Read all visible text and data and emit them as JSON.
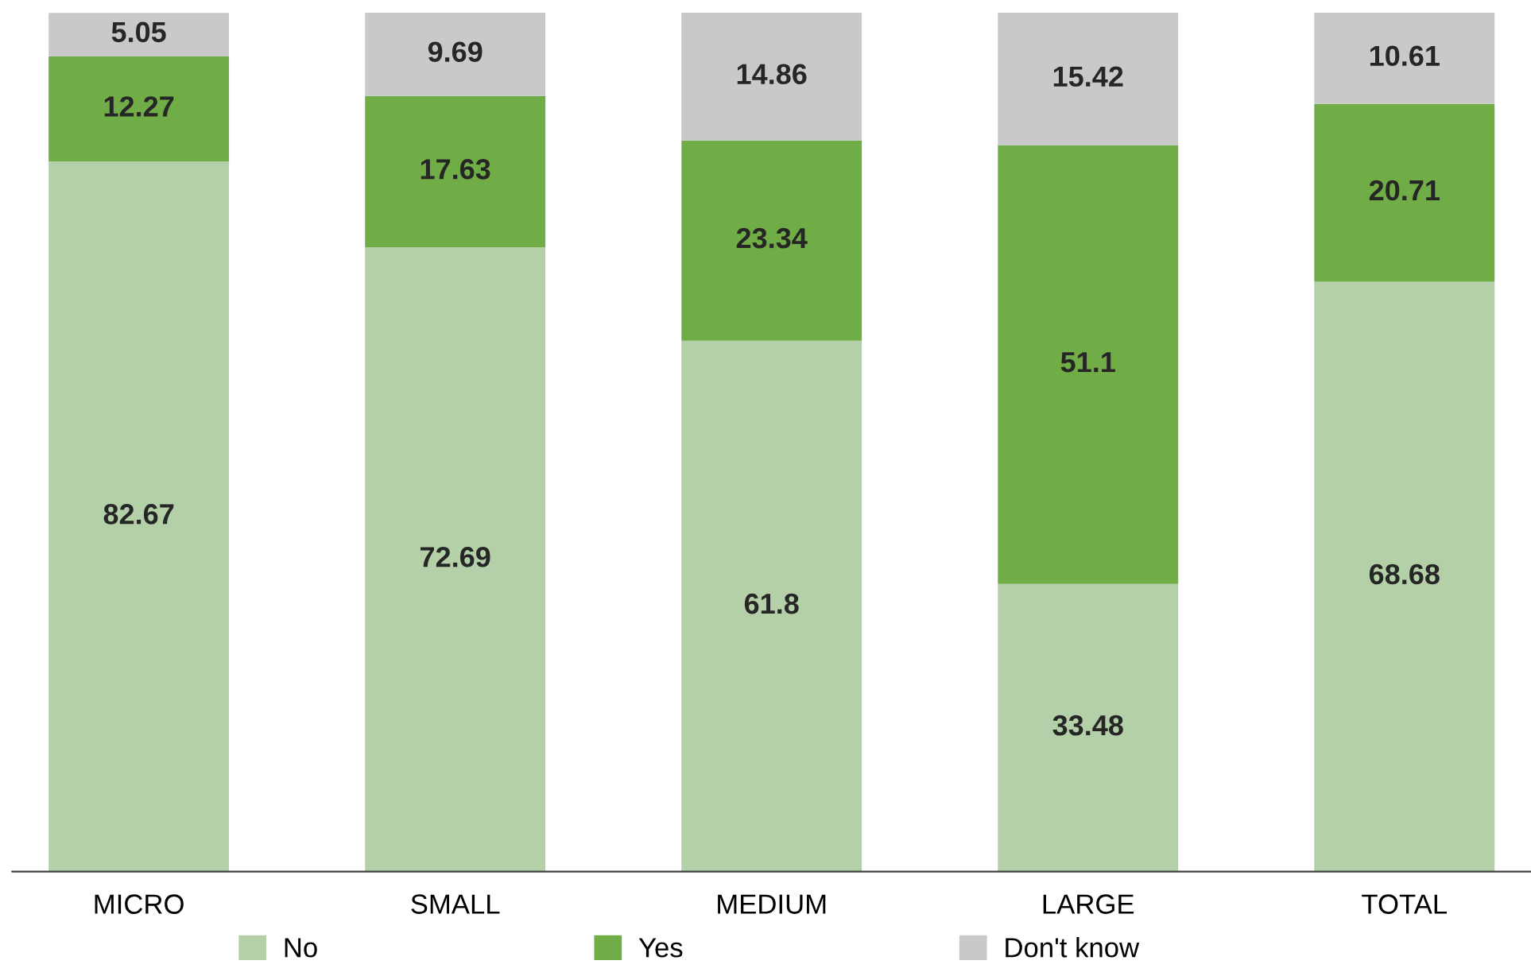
{
  "chart_data": {
    "type": "bar",
    "stacked": true,
    "data_labels": true,
    "legend": "bottom",
    "grid": false,
    "categories": [
      "MICRO",
      "SMALL",
      "MEDIUM",
      "LARGE",
      "TOTAL"
    ],
    "series": [
      {
        "name": "No",
        "color": "#b3d0a8",
        "values": [
          82.67,
          72.69,
          61.8,
          33.48,
          68.68
        ]
      },
      {
        "name": "Yes",
        "color": "#70ad47",
        "values": [
          12.27,
          17.63,
          23.34,
          51.1,
          20.71
        ]
      },
      {
        "name": "Don't know",
        "color": "#c9c9c9",
        "values": [
          5.05,
          9.69,
          14.86,
          15.42,
          10.61
        ]
      }
    ]
  }
}
